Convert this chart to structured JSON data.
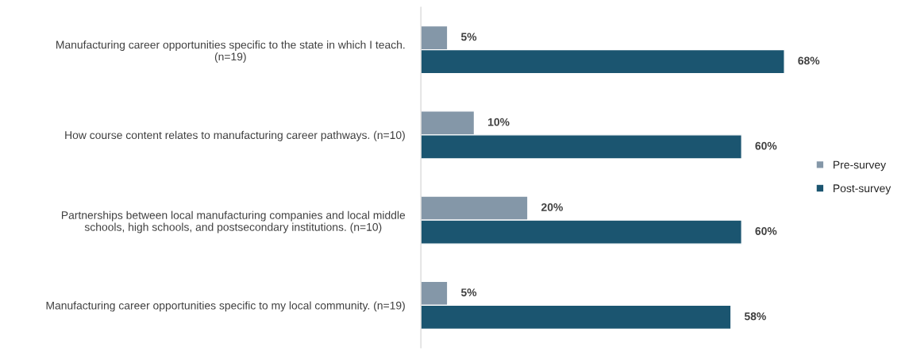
{
  "chart_data": {
    "type": "bar",
    "orientation": "horizontal",
    "categories": [
      "Manufacturing career opportunities specific to the state in which I teach.\n(n=19)",
      "How course content relates to manufacturing career pathways. (n=10)",
      "Partnerships between local manufacturing companies and local middle\nschools, high schools, and postsecondary institutions. (n=10)",
      "Manufacturing career opportunities specific to my local community. (n=19)"
    ],
    "series": [
      {
        "name": "Pre-survey",
        "color": "#8497a8",
        "values": [
          5,
          10,
          20,
          5
        ],
        "value_labels": [
          "5%",
          "10%",
          "20%",
          "5%"
        ]
      },
      {
        "name": "Post-survey",
        "color": "#1b5570",
        "values": [
          68,
          60,
          60,
          58
        ],
        "value_labels": [
          "68%",
          "60%",
          "60%",
          "58%"
        ]
      }
    ],
    "tick_labels": "y",
    "legend": "right",
    "grid": false
  }
}
